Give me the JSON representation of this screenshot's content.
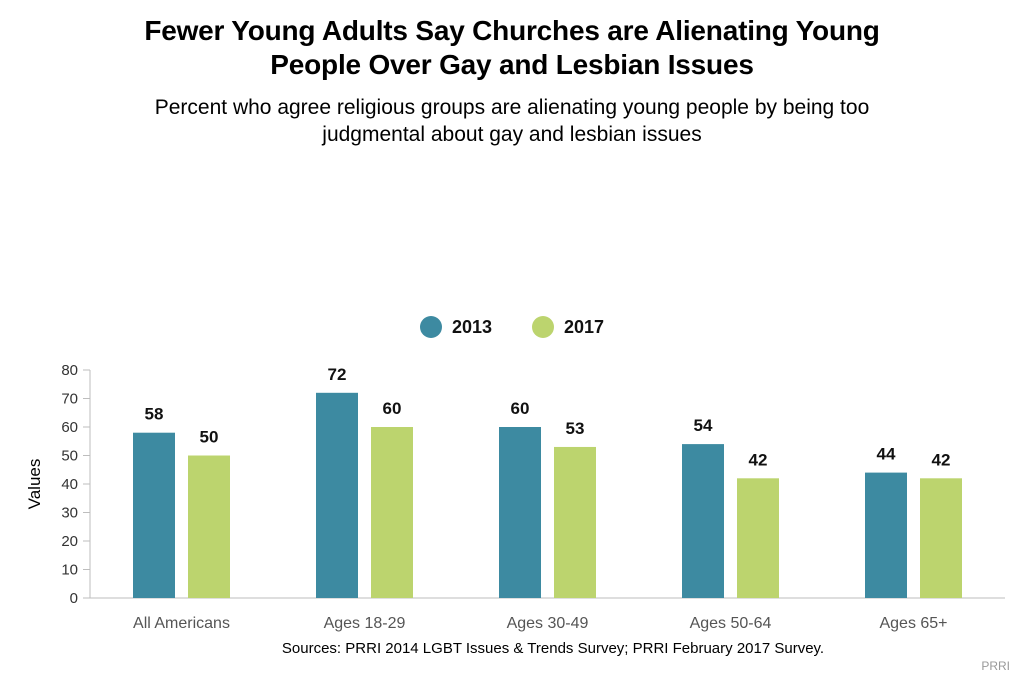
{
  "header": {
    "title_line1": "Fewer Young Adults Say Churches are Alienating Young",
    "title_line2": "People Over Gay and Lesbian Issues",
    "subtitle_line1": "Percent who agree religious groups are alienating young people by being too",
    "subtitle_line2": "judgmental about gay and lesbian issues"
  },
  "legend": [
    {
      "label": "2013",
      "color": "#3d8aa1"
    },
    {
      "label": "2017",
      "color": "#bcd46e"
    }
  ],
  "footer": {
    "source": "Sources: PRRI 2014 LGBT Issues & Trends Survey; PRRI February 2017 Survey.",
    "brand": "PRRI"
  },
  "chart_data": {
    "type": "bar",
    "categories": [
      "All Americans",
      "Ages 18-29",
      "Ages 30-49",
      "Ages 50-64",
      "Ages 65+"
    ],
    "series": [
      {
        "name": "2013",
        "values": [
          58,
          72,
          60,
          54,
          44
        ],
        "color": "#3d8aa1"
      },
      {
        "name": "2017",
        "values": [
          50,
          60,
          53,
          42,
          42
        ],
        "color": "#bcd46e"
      }
    ],
    "ylabel": "Values",
    "ylim": [
      0,
      80
    ],
    "yticks": [
      0,
      10,
      20,
      30,
      40,
      50,
      60,
      70,
      80
    ],
    "grid": false,
    "legend_position": "top-center"
  }
}
